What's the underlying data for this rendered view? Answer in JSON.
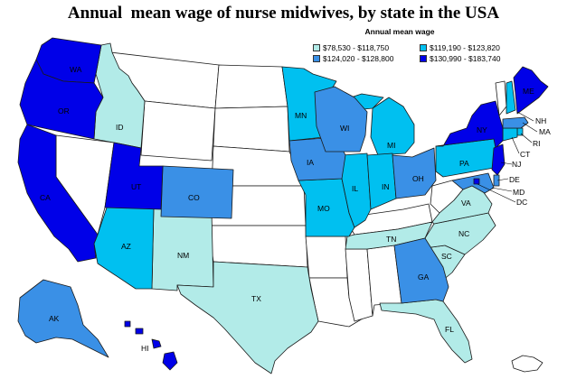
{
  "title": "Annual  mean wage of nurse midwives, by state in the USA",
  "legend": {
    "title": "Annual mean wage",
    "items": [
      {
        "label": "$78,530 - $118,750",
        "color": "#b2ebe8"
      },
      {
        "label": "$119,190 - $123,820",
        "color": "#00c0f0"
      },
      {
        "label": "$124,020 - $128,800",
        "color": "#3a90e6"
      },
      {
        "label": "$130,990 - $183,740",
        "color": "#0000e8"
      }
    ]
  },
  "states": {
    "WA": "WA",
    "OR": "OR",
    "CA": "CA",
    "ID": "ID",
    "UT": "UT",
    "AZ": "AZ",
    "NM": "NM",
    "CO": "CO",
    "TX": "TX",
    "MN": "MN",
    "IA": "IA",
    "MO": "MO",
    "WI": "WI",
    "IL": "IL",
    "MI": "MI",
    "IN": "IN",
    "OH": "OH",
    "TN": "TN",
    "GA": "GA",
    "FL": "FL",
    "SC": "SC",
    "NC": "NC",
    "VA": "VA",
    "PA": "PA",
    "NY": "NY",
    "ME": "ME",
    "NH": "NH",
    "MA": "MA",
    "RI": "RI",
    "CT": "CT",
    "NJ": "NJ",
    "DE": "DE",
    "MD": "MD",
    "DC": "DC",
    "AK": "AK",
    "HI": "HI"
  }
}
